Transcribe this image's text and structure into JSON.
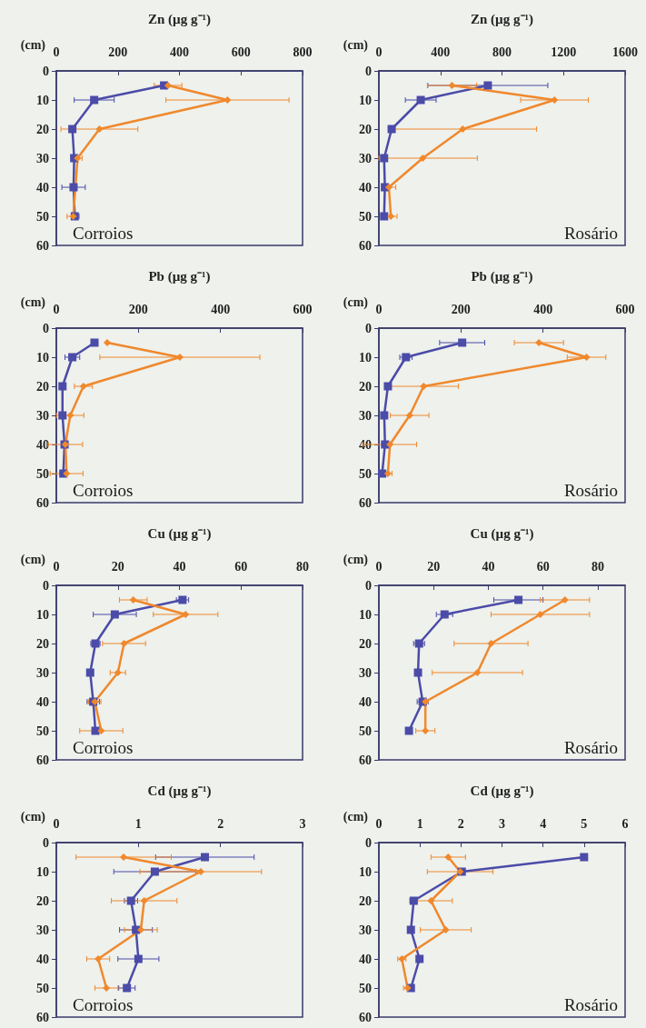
{
  "chart_data": [
    {
      "type": "line",
      "xlabel": "Zn (µg g⁻¹)",
      "ylabel": "(cm)",
      "annotations": [
        "Corroios"
      ],
      "xlim": [
        0,
        800
      ],
      "xticks": [
        0,
        200,
        400,
        600,
        800
      ],
      "ylim": [
        60,
        0
      ],
      "yticks": [
        0,
        10,
        20,
        30,
        40,
        50,
        60
      ],
      "series": [
        {
          "color": "#4b4ba8",
          "marker": "square",
          "x": [
            350,
            123,
            52,
            58,
            56,
            60
          ],
          "values": [
            5,
            10,
            20,
            30,
            40,
            50
          ],
          "xerrors": [
            null,
            65,
            null,
            null,
            38,
            null
          ]
        },
        {
          "color": "#f0882c",
          "marker": "diamond",
          "x": [
            363,
            556,
            140,
            69,
            null,
            55
          ],
          "values": [
            5,
            10,
            20,
            30,
            null,
            50
          ],
          "xerrors": [
            45,
            200,
            125,
            15,
            null,
            20
          ]
        }
      ]
    },
    {
      "type": "line",
      "xlabel": "Zn (µg g⁻¹)",
      "ylabel": "(cm)",
      "annotations": [
        "Rosário"
      ],
      "xlim": [
        0,
        1600
      ],
      "xticks": [
        0,
        400,
        800,
        1200,
        1600
      ],
      "ylim": [
        60,
        0
      ],
      "yticks": [
        0,
        10,
        20,
        30,
        40,
        50,
        60
      ],
      "series": [
        {
          "color": "#4b4ba8",
          "marker": "square",
          "x": [
            708,
            272,
            83,
            34,
            39,
            34
          ],
          "values": [
            5,
            10,
            20,
            30,
            40,
            50
          ],
          "xerrors": [
            390,
            100,
            null,
            null,
            null,
            null
          ]
        },
        {
          "color": "#f0882c",
          "marker": "diamond",
          "x": [
            475,
            1141,
            545,
            285,
            65,
            78
          ],
          "values": [
            5,
            10,
            20,
            30,
            40,
            50
          ],
          "xerrors": [
            160,
            220,
            480,
            [
              0,
              640
            ],
            45,
            40
          ]
        }
      ]
    },
    {
      "type": "line",
      "xlabel": "Pb (µg g⁻¹)",
      "ylabel": "(cm)",
      "annotations": [
        "Corroios"
      ],
      "xlim": [
        0,
        600
      ],
      "xticks": [
        0,
        200,
        400,
        600
      ],
      "ylim": [
        60,
        0
      ],
      "yticks": [
        0,
        10,
        20,
        30,
        40,
        50,
        60
      ],
      "series": [
        {
          "color": "#4b4ba8",
          "marker": "square",
          "x": [
            93,
            39,
            15,
            15,
            20,
            17
          ],
          "values": [
            5,
            10,
            20,
            30,
            40,
            50
          ],
          "xerrors": [
            null,
            18,
            null,
            null,
            null,
            null
          ]
        },
        {
          "color": "#f0882c",
          "marker": "diamond",
          "x": [
            124,
            301,
            66,
            34,
            22,
            25
          ],
          "values": [
            5,
            10,
            20,
            30,
            40,
            50
          ],
          "xerrors": [
            null,
            195,
            22,
            33,
            42,
            40
          ]
        }
      ]
    },
    {
      "type": "line",
      "xlabel": "Pb (µg g⁻¹)",
      "ylabel": "(cm)",
      "annotations": [
        "Rosário"
      ],
      "xlim": [
        0,
        600
      ],
      "xticks": [
        0,
        200,
        400,
        600
      ],
      "ylim": [
        60,
        0
      ],
      "yticks": [
        0,
        10,
        20,
        30,
        40,
        50,
        60
      ],
      "series": [
        {
          "color": "#4b4ba8",
          "marker": "square",
          "x": [
            203,
            66,
            22,
            13,
            15,
            8
          ],
          "values": [
            5,
            10,
            20,
            30,
            40,
            50
          ],
          "xerrors": [
            55,
            15,
            null,
            null,
            null,
            null
          ]
        },
        {
          "color": "#f0882c",
          "marker": "diamond",
          "x": [
            390,
            506,
            109,
            75,
            27,
            22
          ],
          "values": [
            5,
            10,
            20,
            30,
            40,
            50
          ],
          "xerrors": [
            60,
            47,
            85,
            47,
            65,
            10
          ]
        }
      ]
    },
    {
      "type": "line",
      "xlabel": "Cu (µg g⁻¹)",
      "ylabel": "(cm)",
      "annotations": [
        "Corroios"
      ],
      "xlim": [
        0,
        80
      ],
      "xticks": [
        0,
        20,
        40,
        60,
        80
      ],
      "ylim": [
        60,
        0
      ],
      "yticks": [
        0,
        10,
        20,
        30,
        40,
        50,
        60
      ],
      "series": [
        {
          "color": "#4b4ba8",
          "marker": "square",
          "x": [
            41,
            19,
            12.7,
            11,
            12,
            12.7
          ],
          "values": [
            5,
            10,
            20,
            30,
            40,
            50
          ],
          "xerrors": [
            2,
            7,
            1.5,
            null,
            2,
            null
          ]
        },
        {
          "color": "#f0882c",
          "marker": "diamond",
          "x": [
            25,
            42,
            22,
            20,
            12.5,
            14.6
          ],
          "values": [
            5,
            10,
            20,
            30,
            40,
            50
          ],
          "xerrors": [
            4.5,
            10.5,
            7,
            2.5,
            2,
            7
          ]
        }
      ]
    },
    {
      "type": "line",
      "xlabel": "Cu (µg g⁻¹)",
      "ylabel": "(cm)",
      "annotations": [
        "Rosário"
      ],
      "xlim": [
        0,
        90
      ],
      "xticks": [
        0,
        20,
        40,
        60,
        80
      ],
      "ylim": [
        60,
        0
      ],
      "yticks": [
        0,
        10,
        20,
        30,
        40,
        50,
        60
      ],
      "series": [
        {
          "color": "#4b4ba8",
          "marker": "square",
          "x": [
            51,
            24,
            14.7,
            14.3,
            16,
            11
          ],
          "values": [
            5,
            10,
            20,
            30,
            40,
            50
          ],
          "xerrors": [
            9,
            3,
            2,
            null,
            2,
            null
          ]
        },
        {
          "color": "#f0882c",
          "marker": "diamond",
          "x": [
            68,
            59,
            41,
            36,
            17,
            17
          ],
          "values": [
            5,
            10,
            20,
            30,
            40,
            50
          ],
          "xerrors": [
            9,
            18,
            13.5,
            16.5,
            null,
            3.5
          ]
        }
      ]
    },
    {
      "type": "line",
      "xlabel": "Cd (µg g⁻¹)",
      "ylabel": "(cm)",
      "annotations": [
        "Corroios"
      ],
      "xlim": [
        0,
        3
      ],
      "xticks": [
        0,
        1,
        2,
        3
      ],
      "ylim": [
        60,
        0
      ],
      "yticks": [
        0,
        10,
        20,
        30,
        40,
        50,
        60
      ],
      "series": [
        {
          "color": "#4b4ba8",
          "marker": "square",
          "x": [
            1.81,
            1.2,
            0.91,
            0.97,
            1.0,
            0.86
          ],
          "values": [
            5,
            10,
            20,
            30,
            40,
            50
          ],
          "xerrors": [
            0.6,
            0.5,
            0.08,
            0.2,
            0.25,
            0.1
          ]
        },
        {
          "color": "#f0882c",
          "marker": "diamond",
          "x": [
            0.82,
            1.76,
            1.07,
            1.03,
            0.51,
            0.61
          ],
          "values": [
            5,
            10,
            20,
            30,
            40,
            50
          ],
          "xerrors": [
            0.58,
            0.74,
            0.4,
            0.2,
            0.14,
            0.14
          ]
        }
      ]
    },
    {
      "type": "line",
      "xlabel": "Cd (µg g⁻¹)",
      "ylabel": "(cm)",
      "annotations": [
        "Rosário"
      ],
      "xlim": [
        0,
        6
      ],
      "xticks": [
        0,
        1,
        2,
        3,
        4,
        5,
        6
      ],
      "ylim": [
        60,
        0
      ],
      "yticks": [
        0,
        10,
        20,
        30,
        40,
        50,
        60
      ],
      "series": [
        {
          "color": "#4b4ba8",
          "marker": "square",
          "x": [
            5.0,
            2.02,
            0.85,
            0.78,
            0.99,
            0.78
          ],
          "values": [
            5,
            10,
            20,
            30,
            40,
            50
          ],
          "xerrors": [
            null,
            null,
            null,
            null,
            null,
            null
          ]
        },
        {
          "color": "#f0882c",
          "marker": "diamond",
          "x": [
            1.69,
            1.98,
            1.27,
            1.63,
            0.56,
            0.7
          ],
          "values": [
            5,
            10,
            20,
            30,
            40,
            50
          ],
          "xerrors": [
            0.42,
            0.8,
            0.52,
            0.62,
            0.1,
            0.1
          ]
        }
      ]
    }
  ]
}
